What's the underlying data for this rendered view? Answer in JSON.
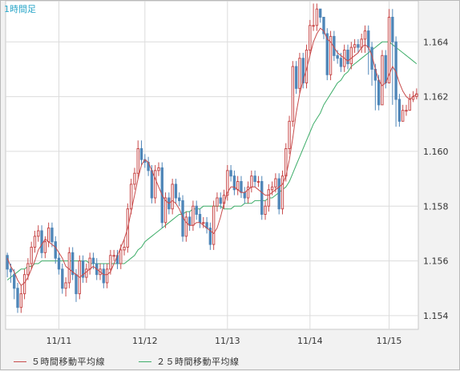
{
  "header": {
    "timeframe_label": "1時間足"
  },
  "legend": [
    {
      "label": "５時間移動平均線",
      "color": "#c84b4b"
    },
    {
      "label": "２５時間移動平均線",
      "color": "#3fae6a"
    }
  ],
  "colors": {
    "up": "#c84b4b",
    "down": "#4f86b8",
    "grid": "#dcdcdc",
    "plot_bg": "#ffffff"
  },
  "chart_data": {
    "type": "candlestick",
    "title": "",
    "xlabel": "",
    "ylabel": "",
    "ylim": [
      1.1535,
      1.1655
    ],
    "yticks": [
      "1.154",
      "1.156",
      "1.158",
      "1.160",
      "1.162",
      "1.164"
    ],
    "xticks": [
      {
        "label": "11/11",
        "index": 15
      },
      {
        "label": "11/12",
        "index": 40
      },
      {
        "label": "11/13",
        "index": 64
      },
      {
        "label": "11/14",
        "index": 88
      },
      {
        "label": "11/15",
        "index": 111
      }
    ],
    "series": [
      {
        "name": "５時間移動平均線",
        "type": "line",
        "color": "#c84b4b",
        "values": [
          1.1561,
          1.1558,
          1.1556,
          1.1553,
          1.1551,
          1.1552,
          1.1554,
          1.1557,
          1.156,
          1.1564,
          1.1566,
          1.1568,
          1.1567,
          1.1566,
          1.1565,
          1.1563,
          1.1561,
          1.1558,
          1.1557,
          1.1556,
          1.1555,
          1.1554,
          1.1555,
          1.1556,
          1.1557,
          1.1558,
          1.1557,
          1.1556,
          1.1555,
          1.1555,
          1.1556,
          1.1559,
          1.1562,
          1.1565,
          1.1568,
          1.1572,
          1.1578,
          1.1584,
          1.159,
          1.1595,
          1.1597,
          1.1596,
          1.1593,
          1.159,
          1.1587,
          1.1584,
          1.1582,
          1.1581,
          1.1582,
          1.1581,
          1.1579,
          1.1576,
          1.1574,
          1.1573,
          1.1573,
          1.1574,
          1.1574,
          1.1573,
          1.1572,
          1.1571,
          1.157,
          1.1572,
          1.1576,
          1.1581,
          1.1585,
          1.1587,
          1.1587,
          1.1586,
          1.1585,
          1.1585,
          1.1586,
          1.1587,
          1.1587,
          1.1586,
          1.1585,
          1.1584,
          1.1584,
          1.1585,
          1.1586,
          1.1587,
          1.1588,
          1.1591,
          1.1597,
          1.1605,
          1.1614,
          1.1621,
          1.1626,
          1.163,
          1.1635,
          1.164,
          1.1643,
          1.1645,
          1.1644,
          1.1641,
          1.164,
          1.1638,
          1.1636,
          1.1635,
          1.1634,
          1.1633,
          1.1634,
          1.1635,
          1.1636,
          1.1638,
          1.1639,
          1.1638,
          1.1635,
          1.163,
          1.1626,
          1.1624,
          1.1625,
          1.1628,
          1.1631,
          1.1629,
          1.1625,
          1.1622,
          1.162,
          1.1619,
          1.162,
          1.1621
        ]
      },
      {
        "name": "２５時間移動平均線",
        "type": "line",
        "color": "#3fae6a",
        "values": [
          1.1553,
          1.1554,
          1.1555,
          1.1556,
          1.1557,
          1.1557,
          1.1558,
          1.1558,
          1.1559,
          1.1559,
          1.156,
          1.156,
          1.156,
          1.156,
          1.156,
          1.156,
          1.156,
          1.156,
          1.156,
          1.156,
          1.156,
          1.156,
          1.156,
          1.156,
          1.1559,
          1.1559,
          1.1559,
          1.1559,
          1.1559,
          1.1559,
          1.1559,
          1.1559,
          1.1559,
          1.1559,
          1.1559,
          1.156,
          1.1561,
          1.1562,
          1.1564,
          1.1565,
          1.1567,
          1.1568,
          1.1569,
          1.157,
          1.1571,
          1.1572,
          1.1573,
          1.1574,
          1.1575,
          1.1576,
          1.1577,
          1.1577,
          1.1578,
          1.1578,
          1.1579,
          1.1579,
          1.1579,
          1.158,
          1.158,
          1.158,
          1.158,
          1.158,
          1.158,
          1.1579,
          1.1579,
          1.1579,
          1.158,
          1.158,
          1.158,
          1.1581,
          1.1581,
          1.1581,
          1.1582,
          1.1582,
          1.1582,
          1.1582,
          1.1583,
          1.1583,
          1.1584,
          1.1585,
          1.1586,
          1.1587,
          1.1589,
          1.1592,
          1.1595,
          1.1598,
          1.1601,
          1.1604,
          1.1607,
          1.161,
          1.1612,
          1.1614,
          1.1617,
          1.1619,
          1.1621,
          1.1623,
          1.1625,
          1.1626,
          1.1628,
          1.1629,
          1.1631,
          1.1632,
          1.1633,
          1.1634,
          1.1635,
          1.1636,
          1.1637,
          1.1638,
          1.1639,
          1.164,
          1.164,
          1.164,
          1.1639,
          1.1638,
          1.1637,
          1.1636,
          1.1635,
          1.1634,
          1.1633,
          1.1632
        ]
      }
    ],
    "candles": {
      "open": [
        1.1562,
        1.1557,
        1.1555,
        1.155,
        1.1543,
        1.1548,
        1.1555,
        1.1559,
        1.1565,
        1.1569,
        1.1571,
        1.1563,
        1.1567,
        1.1572,
        1.1567,
        1.1561,
        1.1557,
        1.155,
        1.1552,
        1.1563,
        1.1555,
        1.1548,
        1.156,
        1.1554,
        1.1557,
        1.1561,
        1.1559,
        1.1555,
        1.1557,
        1.1552,
        1.1557,
        1.1562,
        1.1562,
        1.1559,
        1.1564,
        1.1565,
        1.1579,
        1.1588,
        1.1592,
        1.1601,
        1.1597,
        1.1596,
        1.1593,
        1.1583,
        1.1593,
        1.1594,
        1.1574,
        1.1583,
        1.1579,
        1.1588,
        1.1583,
        1.1582,
        1.1569,
        1.1576,
        1.1573,
        1.158,
        1.1577,
        1.1574,
        1.1574,
        1.1572,
        1.1566,
        1.158,
        1.1583,
        1.1581,
        1.1584,
        1.1593,
        1.1591,
        1.1586,
        1.1589,
        1.1585,
        1.1583,
        1.1587,
        1.1591,
        1.1589,
        1.1589,
        1.1577,
        1.158,
        1.1586,
        1.1587,
        1.159,
        1.1579,
        1.1591,
        1.1601,
        1.1611,
        1.1631,
        1.1623,
        1.1634,
        1.1625,
        1.1637,
        1.1646,
        1.1646,
        1.1652,
        1.1649,
        1.1643,
        1.1628,
        1.1642,
        1.1635,
        1.1634,
        1.1631,
        1.1637,
        1.1632,
        1.1638,
        1.1639,
        1.1638,
        1.1641,
        1.1644,
        1.1638,
        1.163,
        1.1626,
        1.1617,
        1.1635,
        1.1625,
        1.1649,
        1.164,
        1.1619,
        1.1611,
        1.1615,
        1.1615,
        1.1619,
        1.162
      ],
      "close": [
        1.1557,
        1.1556,
        1.155,
        1.1543,
        1.1548,
        1.1555,
        1.1559,
        1.1565,
        1.1569,
        1.1571,
        1.1563,
        1.1567,
        1.1572,
        1.1567,
        1.1561,
        1.1557,
        1.155,
        1.1552,
        1.1563,
        1.1555,
        1.1548,
        1.156,
        1.1554,
        1.1557,
        1.1561,
        1.1559,
        1.1555,
        1.1557,
        1.1552,
        1.1557,
        1.1562,
        1.1562,
        1.1559,
        1.1564,
        1.1565,
        1.1579,
        1.1588,
        1.1592,
        1.1601,
        1.1597,
        1.1596,
        1.1593,
        1.1583,
        1.1593,
        1.1594,
        1.1574,
        1.1583,
        1.1579,
        1.1588,
        1.1583,
        1.1582,
        1.1569,
        1.1576,
        1.1573,
        1.158,
        1.1577,
        1.1574,
        1.1574,
        1.1572,
        1.1566,
        1.158,
        1.1583,
        1.1581,
        1.1584,
        1.1593,
        1.1591,
        1.1586,
        1.1589,
        1.1585,
        1.1583,
        1.1587,
        1.1591,
        1.1589,
        1.1589,
        1.1577,
        1.158,
        1.1586,
        1.1587,
        1.159,
        1.1579,
        1.1591,
        1.1601,
        1.1611,
        1.1631,
        1.1623,
        1.1634,
        1.1625,
        1.1637,
        1.1646,
        1.1646,
        1.1652,
        1.1649,
        1.1643,
        1.1628,
        1.1642,
        1.1635,
        1.1634,
        1.1631,
        1.1637,
        1.1632,
        1.1638,
        1.1639,
        1.1638,
        1.1641,
        1.1644,
        1.1638,
        1.163,
        1.1626,
        1.1617,
        1.1635,
        1.1625,
        1.1649,
        1.164,
        1.1619,
        1.1611,
        1.1615,
        1.1615,
        1.1619,
        1.162,
        1.1621
      ],
      "high": [
        1.1563,
        1.1559,
        1.1557,
        1.1552,
        1.1551,
        1.1557,
        1.1561,
        1.1567,
        1.1571,
        1.1573,
        1.1573,
        1.1569,
        1.1574,
        1.1574,
        1.1569,
        1.1563,
        1.1559,
        1.1554,
        1.1565,
        1.1565,
        1.1557,
        1.1562,
        1.1562,
        1.1559,
        1.1563,
        1.1563,
        1.1561,
        1.1559,
        1.1559,
        1.1559,
        1.1564,
        1.1564,
        1.1564,
        1.1566,
        1.1568,
        1.1581,
        1.159,
        1.1594,
        1.1604,
        1.1604,
        1.1599,
        1.1598,
        1.1595,
        1.1595,
        1.1596,
        1.1596,
        1.1585,
        1.1585,
        1.159,
        1.159,
        1.1585,
        1.1584,
        1.1578,
        1.1578,
        1.1582,
        1.1582,
        1.1579,
        1.1576,
        1.1576,
        1.1574,
        1.1582,
        1.1585,
        1.1585,
        1.1586,
        1.1595,
        1.1595,
        1.1593,
        1.1591,
        1.1591,
        1.1587,
        1.1589,
        1.1593,
        1.1593,
        1.1591,
        1.1591,
        1.1582,
        1.1588,
        1.1589,
        1.1592,
        1.1592,
        1.1593,
        1.1603,
        1.1613,
        1.1633,
        1.1633,
        1.1636,
        1.1636,
        1.1639,
        1.1648,
        1.1654,
        1.1654,
        1.1652,
        1.1649,
        1.1645,
        1.1644,
        1.1644,
        1.1637,
        1.1636,
        1.1639,
        1.1639,
        1.164,
        1.1641,
        1.1641,
        1.1643,
        1.1646,
        1.1646,
        1.164,
        1.1632,
        1.1628,
        1.1637,
        1.1637,
        1.1652,
        1.1652,
        1.1642,
        1.1621,
        1.1617,
        1.1617,
        1.1621,
        1.1622,
        1.1623
      ],
      "low": [
        1.1554,
        1.1552,
        1.1546,
        1.1541,
        1.1541,
        1.1546,
        1.1553,
        1.1557,
        1.1563,
        1.1567,
        1.1561,
        1.1561,
        1.1565,
        1.1565,
        1.1559,
        1.1555,
        1.1548,
        1.1547,
        1.155,
        1.1553,
        1.1545,
        1.1546,
        1.1552,
        1.1552,
        1.1555,
        1.1557,
        1.1553,
        1.1553,
        1.155,
        1.155,
        1.1555,
        1.156,
        1.1557,
        1.1557,
        1.1562,
        1.1563,
        1.1577,
        1.1586,
        1.159,
        1.1595,
        1.1594,
        1.1591,
        1.1581,
        1.1581,
        1.1591,
        1.1572,
        1.1572,
        1.1577,
        1.1577,
        1.1581,
        1.158,
        1.1567,
        1.1567,
        1.1571,
        1.1571,
        1.1575,
        1.1572,
        1.1572,
        1.157,
        1.1564,
        1.1564,
        1.1578,
        1.1579,
        1.1579,
        1.1582,
        1.1589,
        1.1584,
        1.1584,
        1.1583,
        1.1581,
        1.1581,
        1.1585,
        1.1587,
        1.1587,
        1.1575,
        1.1575,
        1.1578,
        1.1584,
        1.1585,
        1.1577,
        1.1577,
        1.1589,
        1.1599,
        1.1609,
        1.1621,
        1.1621,
        1.1623,
        1.1623,
        1.1635,
        1.1644,
        1.1644,
        1.1647,
        1.1641,
        1.1626,
        1.1626,
        1.1633,
        1.1632,
        1.1629,
        1.1629,
        1.163,
        1.163,
        1.1636,
        1.1636,
        1.1636,
        1.1636,
        1.1628,
        1.1624,
        1.1615,
        1.1615,
        1.1623,
        1.1623,
        1.1638,
        1.1617,
        1.1609,
        1.1609,
        1.1613,
        1.1613,
        1.1617,
        1.1618,
        1.1619
      ]
    }
  }
}
